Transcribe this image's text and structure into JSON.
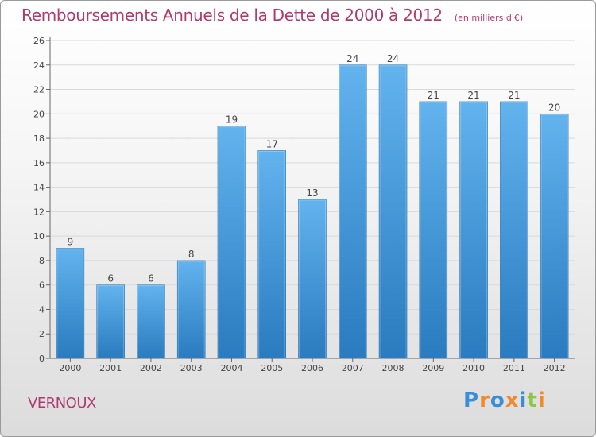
{
  "header": {
    "title": "Remboursements Annuels de la Dette de 2000 à 2012",
    "unit": "(en milliers d'€)"
  },
  "footer": {
    "commune": "VERNOUX",
    "logo_letters": [
      {
        "char": "P",
        "color": "#3a8ed8"
      },
      {
        "char": "r",
        "color": "#f08a2c"
      },
      {
        "char": "o",
        "color": "#3a8ed8"
      },
      {
        "char": "x",
        "color": "#f08a2c"
      },
      {
        "char": "i",
        "color": "#3a8ed8"
      },
      {
        "char": "t",
        "color": "#8dc641"
      },
      {
        "char": "i",
        "color": "#f08a2c"
      }
    ]
  },
  "colors": {
    "title": "#b03a6e",
    "bar_top": "#62b3ee",
    "bar_bottom": "#2a7bbf",
    "axis": "#666666",
    "grid": "#d9d9d9"
  },
  "chart_data": {
    "type": "bar",
    "categories": [
      "2000",
      "2001",
      "2002",
      "2003",
      "2004",
      "2005",
      "2006",
      "2007",
      "2008",
      "2009",
      "2010",
      "2011",
      "2012"
    ],
    "values": [
      9,
      6,
      6,
      8,
      19,
      17,
      13,
      24,
      24,
      21,
      21,
      21,
      20
    ],
    "ylim": [
      0,
      26
    ],
    "yticks": [
      0,
      2,
      4,
      6,
      8,
      10,
      12,
      14,
      16,
      18,
      20,
      22,
      24,
      26
    ],
    "grid": true,
    "data_labels": true
  }
}
